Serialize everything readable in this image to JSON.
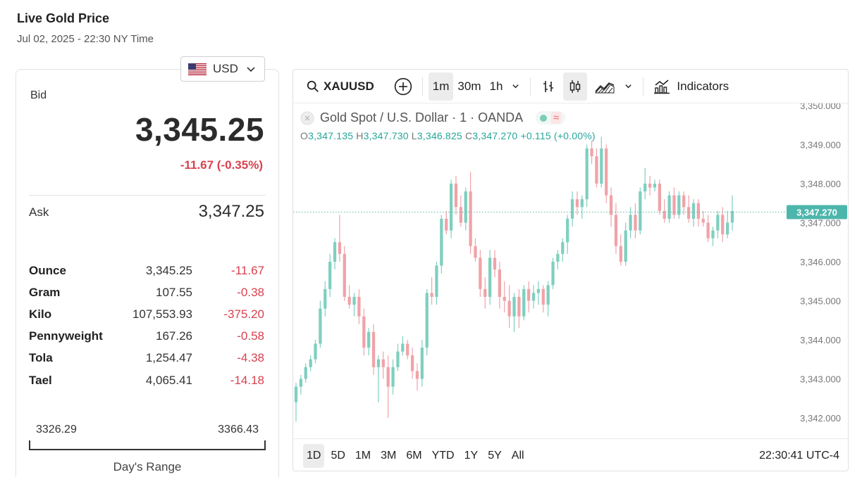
{
  "header": {
    "title": "Live Gold Price",
    "subtitle": "Jul 02, 2025 - 22:30 NY Time"
  },
  "currency": {
    "selected": "USD",
    "flag_icon": "us-flag-icon"
  },
  "quote": {
    "bid_label": "Bid",
    "bid_value": "3,345.25",
    "bid_change": "-11.67 (-0.35%)",
    "ask_label": "Ask",
    "ask_value": "3,347.25"
  },
  "units": [
    {
      "name": "Ounce",
      "price": "3,345.25",
      "change": "-11.67"
    },
    {
      "name": "Gram",
      "price": "107.55",
      "change": "-0.38"
    },
    {
      "name": "Kilo",
      "price": "107,553.93",
      "change": "-375.20"
    },
    {
      "name": "Pennyweight",
      "price": "167.26",
      "change": "-0.58"
    },
    {
      "name": "Tola",
      "price": "1,254.47",
      "change": "-4.38"
    },
    {
      "name": "Tael",
      "price": "4,065.41",
      "change": "-14.18"
    }
  ],
  "day_range": {
    "low": "3326.29",
    "high": "3366.43",
    "label": "Day's Range"
  },
  "toolbar": {
    "symbol": "XAUUSD",
    "intervals": [
      "1m",
      "30m",
      "1h"
    ],
    "active_interval": "1m",
    "indicators_label": "Indicators"
  },
  "legend": {
    "title": "Gold Spot / U.S. Dollar · 1 · OANDA",
    "wave_symbol": "≈",
    "o_key": "O",
    "o_val": "3,347.135",
    "h_key": "H",
    "h_val": "3,347.730",
    "l_key": "L",
    "l_val": "3,346.825",
    "c_key": "C",
    "c_val": "3,347.270",
    "change": "+0.115 (+0.00%)"
  },
  "bottom": {
    "ranges": [
      "1D",
      "5D",
      "1M",
      "3M",
      "6M",
      "YTD",
      "1Y",
      "5Y",
      "All"
    ],
    "active_range": "1D",
    "clock": "22:30:41 UTC-4"
  },
  "colors": {
    "up": "#26a69a",
    "down": "#ef5350",
    "accent_red": "#d9414e"
  },
  "chart_data": {
    "type": "candlestick",
    "title": "Gold Spot / U.S. Dollar · 1 · OANDA",
    "ylim": [
      3341.5,
      3350.2
    ],
    "y_ticks": [
      "3,342.000",
      "3,343.000",
      "3,344.000",
      "3,345.000",
      "3,346.000",
      "3,347.000",
      "3,348.000",
      "3,349.000",
      "3,350.000"
    ],
    "last_price_label": "3,347.270",
    "last_price": 3347.27,
    "candles": [
      [
        3342.4,
        3342.9,
        3341.9,
        3342.8
      ],
      [
        3342.8,
        3343.1,
        3342.6,
        3343.0
      ],
      [
        3343.0,
        3343.4,
        3342.9,
        3343.3
      ],
      [
        3343.3,
        3343.6,
        3343.2,
        3343.5
      ],
      [
        3343.5,
        3344.0,
        3343.4,
        3343.9
      ],
      [
        3343.9,
        3345.0,
        3343.8,
        3344.8
      ],
      [
        3344.8,
        3345.5,
        3344.6,
        3345.3
      ],
      [
        3345.3,
        3346.2,
        3345.1,
        3346.0
      ],
      [
        3346.0,
        3346.6,
        3345.8,
        3346.5
      ],
      [
        3346.5,
        3347.2,
        3346.0,
        3346.2
      ],
      [
        3346.2,
        3346.4,
        3345.0,
        3345.1
      ],
      [
        3345.1,
        3345.4,
        3344.8,
        3344.9
      ],
      [
        3344.9,
        3345.2,
        3344.6,
        3345.1
      ],
      [
        3345.1,
        3345.3,
        3344.4,
        3344.6
      ],
      [
        3344.6,
        3344.8,
        3343.6,
        3343.8
      ],
      [
        3343.8,
        3344.3,
        3343.6,
        3344.2
      ],
      [
        3344.2,
        3344.4,
        3343.1,
        3343.3
      ],
      [
        3343.3,
        3343.6,
        3342.4,
        3343.5
      ],
      [
        3343.5,
        3343.7,
        3343.0,
        3343.3
      ],
      [
        3343.3,
        3343.6,
        3342.0,
        3342.8
      ],
      [
        3342.8,
        3343.5,
        3342.6,
        3343.3
      ],
      [
        3343.3,
        3343.9,
        3343.2,
        3343.7
      ],
      [
        3343.7,
        3344.1,
        3343.6,
        3343.9
      ],
      [
        3343.9,
        3344.0,
        3343.5,
        3343.6
      ],
      [
        3343.6,
        3343.8,
        3343.0,
        3343.2
      ],
      [
        3343.2,
        3343.4,
        3342.7,
        3343.0
      ],
      [
        3343.0,
        3344.0,
        3342.8,
        3343.8
      ],
      [
        3343.8,
        3345.3,
        3343.6,
        3345.2
      ],
      [
        3345.2,
        3345.6,
        3344.9,
        3345.1
      ],
      [
        3345.1,
        3346.0,
        3344.9,
        3345.9
      ],
      [
        3345.9,
        3347.2,
        3345.7,
        3347.1
      ],
      [
        3347.1,
        3347.3,
        3346.7,
        3346.8
      ],
      [
        3346.8,
        3348.1,
        3346.6,
        3348.0
      ],
      [
        3348.0,
        3348.2,
        3347.2,
        3347.4
      ],
      [
        3347.4,
        3347.7,
        3346.9,
        3347.0
      ],
      [
        3347.0,
        3347.9,
        3346.8,
        3347.8
      ],
      [
        3347.8,
        3348.3,
        3346.2,
        3346.4
      ],
      [
        3346.4,
        3346.6,
        3346.0,
        3346.1
      ],
      [
        3346.1,
        3346.3,
        3345.1,
        3345.3
      ],
      [
        3345.3,
        3345.6,
        3344.8,
        3345.1
      ],
      [
        3345.1,
        3346.3,
        3344.9,
        3346.1
      ],
      [
        3346.1,
        3346.3,
        3345.6,
        3345.8
      ],
      [
        3345.8,
        3346.0,
        3344.8,
        3345.1
      ],
      [
        3345.1,
        3345.5,
        3344.7,
        3345.0
      ],
      [
        3345.0,
        3345.4,
        3344.3,
        3344.6
      ],
      [
        3344.6,
        3345.2,
        3344.2,
        3345.1
      ],
      [
        3345.1,
        3345.3,
        3344.3,
        3344.6
      ],
      [
        3344.6,
        3345.4,
        3344.5,
        3345.3
      ],
      [
        3345.3,
        3345.5,
        3344.7,
        3345.0
      ],
      [
        3345.0,
        3345.4,
        3344.8,
        3345.2
      ],
      [
        3345.2,
        3345.5,
        3344.9,
        3345.3
      ],
      [
        3345.3,
        3345.4,
        3344.7,
        3344.9
      ],
      [
        3344.9,
        3345.5,
        3344.6,
        3345.4
      ],
      [
        3345.4,
        3346.1,
        3345.3,
        3346.0
      ],
      [
        3346.0,
        3346.3,
        3345.8,
        3346.2
      ],
      [
        3346.2,
        3346.6,
        3346.0,
        3346.5
      ],
      [
        3346.5,
        3347.2,
        3346.2,
        3347.1
      ],
      [
        3347.1,
        3347.8,
        3346.9,
        3347.6
      ],
      [
        3347.6,
        3347.8,
        3347.2,
        3347.4
      ],
      [
        3347.4,
        3347.7,
        3347.1,
        3347.6
      ],
      [
        3347.6,
        3349.0,
        3347.4,
        3348.9
      ],
      [
        3348.9,
        3349.1,
        3348.5,
        3348.7
      ],
      [
        3348.7,
        3348.9,
        3347.9,
        3348.0
      ],
      [
        3348.0,
        3349.2,
        3347.9,
        3348.9
      ],
      [
        3348.9,
        3349.0,
        3347.5,
        3347.7
      ],
      [
        3347.7,
        3347.9,
        3346.9,
        3347.2
      ],
      [
        3347.2,
        3347.5,
        3346.2,
        3346.4
      ],
      [
        3346.4,
        3346.7,
        3345.9,
        3346.0
      ],
      [
        3346.0,
        3347.0,
        3345.9,
        3346.8
      ],
      [
        3346.8,
        3347.4,
        3346.6,
        3347.2
      ],
      [
        3347.2,
        3347.5,
        3346.6,
        3346.8
      ],
      [
        3346.8,
        3347.9,
        3346.7,
        3347.8
      ],
      [
        3347.8,
        3348.4,
        3347.6,
        3348.0
      ],
      [
        3348.0,
        3348.2,
        3347.7,
        3347.9
      ],
      [
        3347.9,
        3348.1,
        3347.8,
        3348.0
      ],
      [
        3348.0,
        3348.1,
        3347.2,
        3347.3
      ],
      [
        3347.3,
        3347.6,
        3347.0,
        3347.1
      ],
      [
        3347.1,
        3347.8,
        3347.0,
        3347.7
      ],
      [
        3347.7,
        3347.9,
        3347.1,
        3347.2
      ],
      [
        3347.2,
        3347.8,
        3347.1,
        3347.7
      ],
      [
        3347.7,
        3347.8,
        3347.2,
        3347.4
      ],
      [
        3347.4,
        3347.7,
        3347.0,
        3347.1
      ],
      [
        3347.1,
        3347.6,
        3346.9,
        3347.5
      ],
      [
        3347.5,
        3347.6,
        3346.9,
        3347.1
      ],
      [
        3347.1,
        3347.3,
        3346.9,
        3347.0
      ],
      [
        3347.0,
        3347.2,
        3346.5,
        3346.6
      ],
      [
        3346.6,
        3346.9,
        3346.4,
        3346.8
      ],
      [
        3346.8,
        3347.3,
        3346.6,
        3347.2
      ],
      [
        3347.2,
        3347.4,
        3346.5,
        3346.7
      ],
      [
        3346.7,
        3347.3,
        3346.6,
        3347.0
      ],
      [
        3347.0,
        3347.7,
        3346.8,
        3347.3
      ]
    ]
  }
}
